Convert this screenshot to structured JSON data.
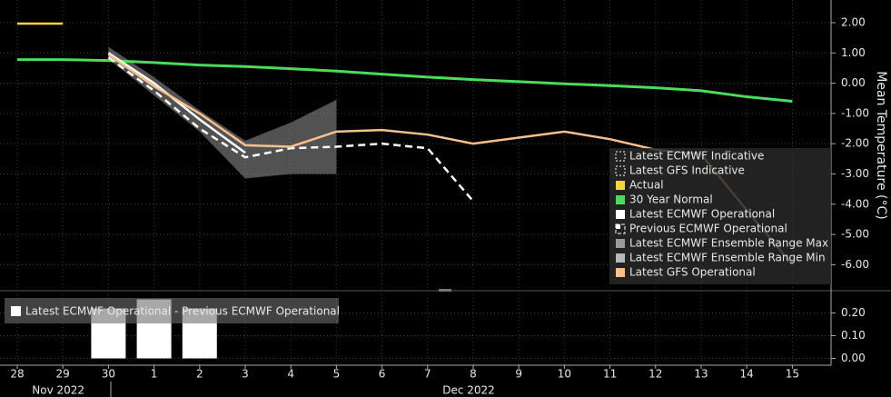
{
  "chart_data": [
    {
      "type": "line",
      "y_label": "Mean Temperature (°C)",
      "ylim": [
        -6.8,
        2.75
      ],
      "yticks": [
        {
          "value": 2,
          "label": "2.00"
        },
        {
          "value": 1,
          "label": "1.00"
        },
        {
          "value": 0,
          "label": "0.00"
        },
        {
          "value": -1,
          "label": "-1.00"
        },
        {
          "value": -2,
          "label": "-2.00"
        },
        {
          "value": -3,
          "label": "-3.00"
        },
        {
          "value": -4,
          "label": "-4.00"
        },
        {
          "value": -5,
          "label": "-5.00"
        },
        {
          "value": -6,
          "label": "-6.00"
        }
      ],
      "grid": true,
      "legend": "lower-right",
      "series": [
        {
          "name": "Latest ECMWF Indicative",
          "color": "#ffffff",
          "style": "indicative"
        },
        {
          "name": "Latest GFS Indicative",
          "color": "#ffffff",
          "style": "indicative"
        },
        {
          "name": "Actual",
          "color": "#f5d33a",
          "values": [
            1.97,
            1.97,
            null,
            null,
            null,
            null,
            null,
            null,
            null,
            null,
            null,
            null,
            null,
            null,
            null,
            null,
            null,
            null
          ]
        },
        {
          "name": "30 Year Normal",
          "color": "#4cdc5c",
          "values": [
            0.78,
            0.78,
            0.75,
            0.68,
            0.6,
            0.55,
            0.48,
            0.4,
            0.3,
            0.2,
            0.12,
            0.05,
            -0.02,
            -0.08,
            -0.15,
            -0.25,
            -0.45,
            -0.6
          ]
        },
        {
          "name": "Latest ECMWF Operational",
          "color": "#ffffff",
          "values": [
            null,
            null,
            1.0,
            0.0,
            -1.2,
            -2.3,
            null,
            null,
            null,
            null,
            null,
            null,
            null,
            null,
            null,
            null,
            null,
            null
          ]
        },
        {
          "name": "Previous ECMWF Operational",
          "color": "#ffffff",
          "style": "dashed",
          "values": [
            null,
            null,
            0.85,
            -0.25,
            -1.5,
            -2.45,
            -2.15,
            -2.1,
            -2.0,
            -2.15,
            -3.9,
            null,
            null,
            null,
            null,
            null,
            null,
            null
          ]
        },
        {
          "name": "Latest ECMWF Ensemble Range Max",
          "color": "#9a9a9a",
          "style": "band-max",
          "values": [
            null,
            null,
            1.2,
            0.2,
            -0.9,
            -1.9,
            -1.3,
            -0.55,
            null,
            null,
            null,
            null,
            null,
            null,
            null,
            null,
            null,
            null
          ]
        },
        {
          "name": "Latest ECMWF Ensemble Range Min",
          "color": "#b8b8b8",
          "style": "band-min",
          "values": [
            null,
            null,
            0.8,
            -0.4,
            -1.6,
            -3.15,
            -3.0,
            -3.0,
            null,
            null,
            null,
            null,
            null,
            null,
            null,
            null,
            null,
            null
          ]
        },
        {
          "name": "Latest GFS Operational",
          "color": "#f8c08a",
          "values": [
            null,
            null,
            0.95,
            -0.1,
            -1.0,
            -2.05,
            -2.1,
            -1.6,
            -1.55,
            -1.7,
            -2.0,
            -1.8,
            -1.6,
            -1.85,
            -2.2,
            -2.35,
            -4.2,
            -6.0
          ]
        }
      ]
    },
    {
      "type": "bar",
      "categories": [
        "28",
        "29",
        "30",
        "1",
        "2",
        "3",
        "4",
        "5",
        "6",
        "7",
        "8",
        "9",
        "10",
        "11",
        "12",
        "13",
        "14",
        "15"
      ],
      "x_groups": [
        {
          "label": "Nov 2022",
          "from": 0,
          "to": 2
        },
        {
          "label": "Dec 2022",
          "from": 3,
          "to": 17
        }
      ],
      "ylim": [
        -0.03,
        0.29
      ],
      "yticks": [
        {
          "value": 0.2,
          "label": "0.20"
        },
        {
          "value": 0.1,
          "label": "0.10"
        },
        {
          "value": 0,
          "label": "0.00"
        }
      ],
      "grid": true,
      "series": [
        {
          "name": "Latest ECMWF Operational - Previous ECMWF Operational",
          "color": "#ffffff",
          "values": [
            null,
            null,
            0.22,
            0.26,
            0.22,
            null,
            null,
            null,
            null,
            null,
            null,
            null,
            null,
            null,
            null,
            null,
            null,
            null
          ]
        }
      ]
    }
  ]
}
